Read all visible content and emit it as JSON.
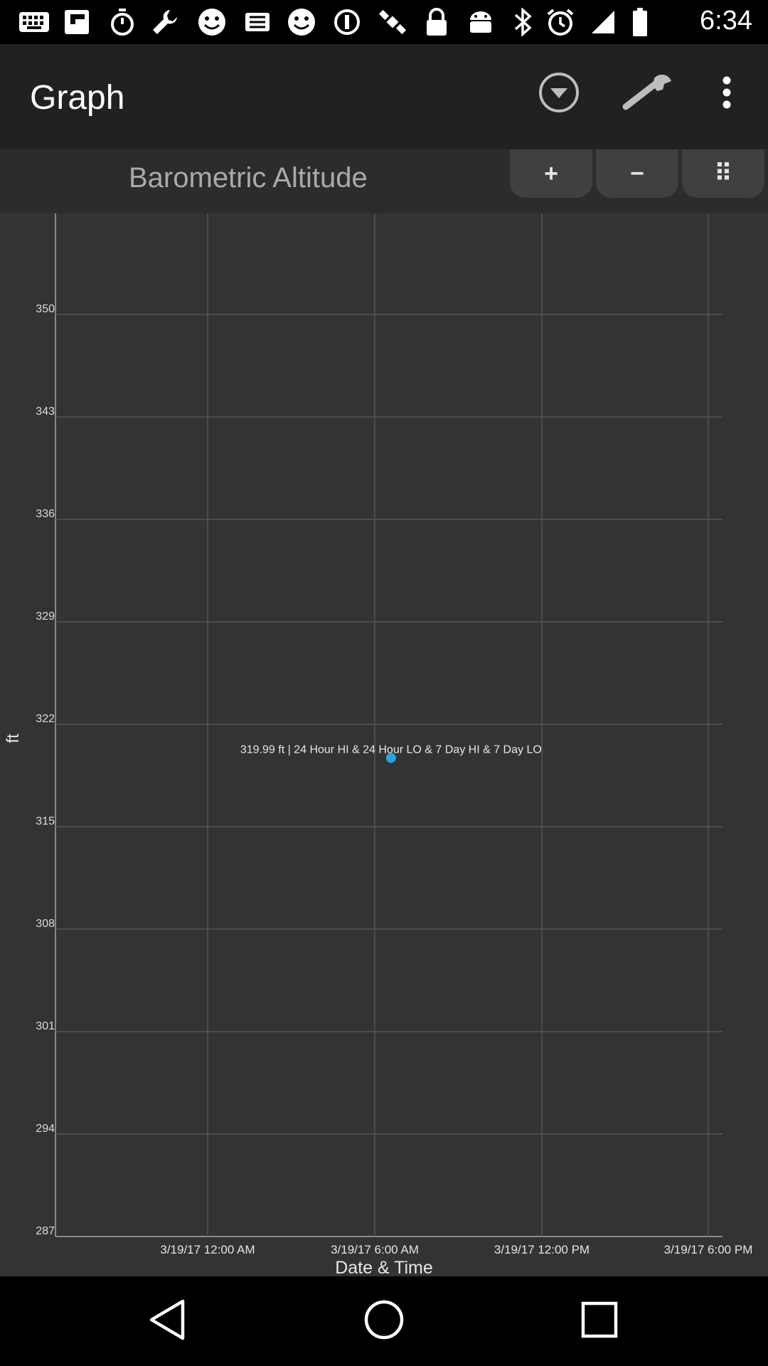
{
  "status_bar": {
    "time": "6:34",
    "icons": [
      "keyboard-icon",
      "flipboard-icon",
      "stopwatch-icon",
      "wrench-icon",
      "smiley-icon",
      "fake-gps-icon",
      "smiley-icon",
      "info-circle-icon",
      "satellite-icon",
      "lock-icon",
      "android-icon",
      "bluetooth-icon",
      "alarm-icon",
      "signal-icon",
      "battery-icon"
    ]
  },
  "app_bar": {
    "title": "Graph",
    "icons": [
      "dropdown-circle-icon",
      "wrench-icon",
      "overflow-menu-icon"
    ]
  },
  "graph_header": {
    "title": "Barometric Altitude",
    "zoom_in_label": "+",
    "zoom_out_label": "−",
    "more_label": "⠿"
  },
  "chart_data": {
    "type": "scatter",
    "title": "Barometric Altitude",
    "xlabel": "Date & Time",
    "ylabel": "ft",
    "y_ticks": [
      "350",
      "343",
      "336",
      "329",
      "322",
      "315",
      "308",
      "301",
      "294",
      "287"
    ],
    "x_ticks": [
      "3/19/17 12:00 AM",
      "3/19/17 6:00 AM",
      "3/19/17 12:00 PM",
      "3/19/17 6:00 PM"
    ],
    "ylim": [
      287,
      357
    ],
    "points": [
      {
        "x": "3/19/17 6:35 AM",
        "y": 319.99,
        "label": "319.99 ft | 24 Hour HI & 24 Hour LO & 7 Day HI & 7 Day LO"
      }
    ],
    "point_color": "#29a3e0",
    "grid": true
  },
  "nav_bar": {
    "icons": [
      "back-icon",
      "home-icon",
      "recents-icon"
    ]
  }
}
